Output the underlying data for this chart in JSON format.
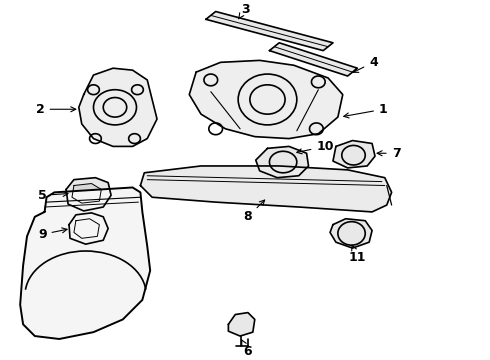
{
  "background_color": "#ffffff",
  "line_color": "#000000",
  "line_width": 1.2,
  "label_fontsize": 9,
  "figsize": [
    4.9,
    3.6
  ],
  "dpi": 100
}
